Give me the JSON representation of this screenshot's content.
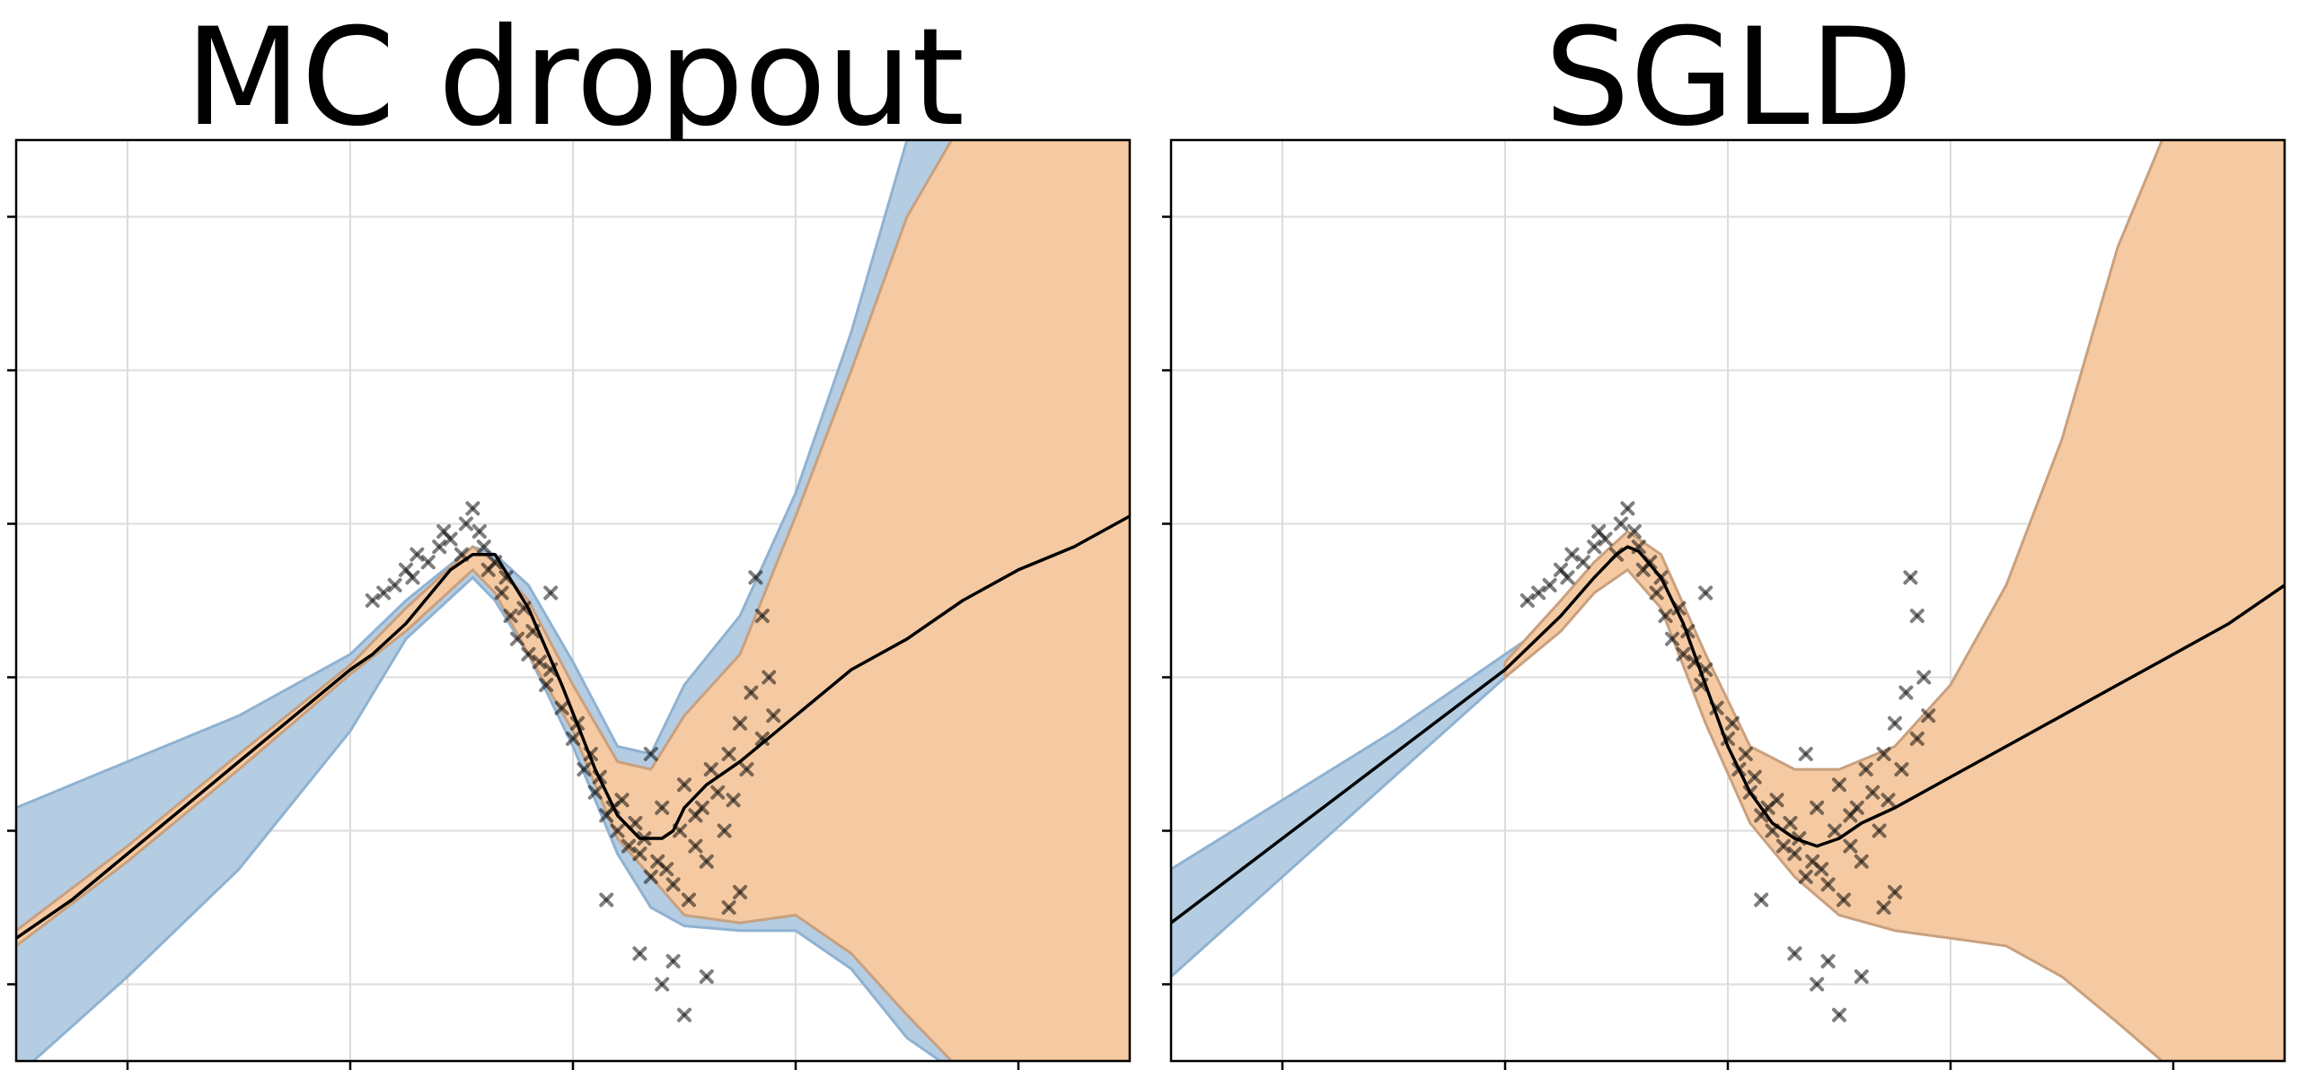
{
  "chart_data": [
    {
      "type": "line",
      "title": "MC dropout",
      "xlabel": "",
      "ylabel": "",
      "xlim": [
        -2.5,
        2.5
      ],
      "ylim": [
        -3.5,
        2.5
      ],
      "xticks": [
        -2,
        -1,
        0,
        1,
        2
      ],
      "yticks": [
        -3,
        -2,
        -1,
        0,
        1,
        2
      ],
      "grid": true,
      "tick_labels_visible": false,
      "series": [
        {
          "kind": "mean_line",
          "color": "#000000",
          "x": [
            -2.5,
            -2.25,
            -2.0,
            -1.75,
            -1.5,
            -1.25,
            -1.0,
            -0.9,
            -0.75,
            -0.55,
            -0.45,
            -0.35,
            -0.2,
            -0.05,
            0.1,
            0.2,
            0.3,
            0.4,
            0.45,
            0.5,
            0.6,
            0.75,
            1.0,
            1.25,
            1.5,
            1.75,
            2.0,
            2.25,
            2.5
          ],
          "y": [
            -2.7,
            -2.45,
            -2.15,
            -1.85,
            -1.55,
            -1.25,
            -0.95,
            -0.85,
            -0.65,
            -0.3,
            -0.2,
            -0.2,
            -0.55,
            -1.05,
            -1.6,
            -1.9,
            -2.05,
            -2.05,
            -2.0,
            -1.85,
            -1.7,
            -1.55,
            -1.25,
            -0.95,
            -0.75,
            -0.5,
            -0.3,
            -0.15,
            0.05
          ]
        },
        {
          "kind": "uncertainty_band_outer",
          "color": "#b4cde2",
          "x": [
            -2.5,
            -2.0,
            -1.5,
            -1.0,
            -0.75,
            -0.45,
            -0.35,
            -0.2,
            0.0,
            0.2,
            0.35,
            0.5,
            0.75,
            1.0,
            1.25,
            1.5,
            1.65,
            1.9,
            2.2,
            2.5
          ],
          "upper": [
            -1.85,
            -1.55,
            -1.25,
            -0.85,
            -0.5,
            -0.15,
            -0.2,
            -0.4,
            -0.9,
            -1.45,
            -1.5,
            -1.05,
            -0.6,
            0.2,
            1.25,
            2.5,
            2.5,
            2.5,
            2.5,
            2.5
          ],
          "lower": [
            -3.6,
            -2.95,
            -2.25,
            -1.35,
            -0.75,
            -0.35,
            -0.5,
            -0.85,
            -1.45,
            -2.15,
            -2.5,
            -2.62,
            -2.65,
            -2.65,
            -2.9,
            -3.35,
            -3.5,
            -3.5,
            -3.5,
            -3.5
          ]
        },
        {
          "kind": "uncertainty_band_inner",
          "color": "#f5caa3",
          "x": [
            -2.5,
            -2.0,
            -1.5,
            -1.0,
            -0.75,
            -0.45,
            -0.35,
            -0.2,
            0.0,
            0.2,
            0.35,
            0.5,
            0.75,
            1.0,
            1.25,
            1.5,
            1.7,
            2.0,
            2.5
          ],
          "upper": [
            -2.65,
            -2.1,
            -1.5,
            -0.92,
            -0.55,
            -0.15,
            -0.25,
            -0.5,
            -1.05,
            -1.55,
            -1.6,
            -1.25,
            -0.85,
            0.05,
            1.0,
            2.0,
            2.5,
            2.5,
            2.5
          ],
          "lower": [
            -2.75,
            -2.2,
            -1.6,
            -0.98,
            -0.7,
            -0.3,
            -0.45,
            -0.85,
            -1.35,
            -2.05,
            -2.3,
            -2.55,
            -2.6,
            -2.55,
            -2.8,
            -3.2,
            -3.5,
            -3.5,
            -3.5
          ]
        },
        {
          "kind": "observations",
          "marker": "x",
          "color": "#000000",
          "x": [
            -0.9,
            -0.85,
            -0.8,
            -0.75,
            -0.72,
            -0.7,
            -0.65,
            -0.6,
            -0.58,
            -0.55,
            -0.5,
            -0.48,
            -0.45,
            -0.42,
            -0.4,
            -0.38,
            -0.35,
            -0.32,
            -0.3,
            -0.28,
            -0.25,
            -0.22,
            -0.2,
            -0.15,
            -0.12,
            -0.1,
            -0.05,
            0.0,
            0.02,
            0.05,
            0.08,
            0.1,
            0.12,
            0.15,
            0.18,
            0.2,
            0.22,
            0.25,
            0.28,
            0.3,
            0.32,
            0.35,
            0.38,
            0.4,
            0.42,
            0.45,
            0.48,
            0.5,
            0.52,
            0.55,
            0.58,
            0.6,
            0.62,
            0.65,
            0.68,
            0.7,
            0.72,
            0.75,
            0.78,
            0.8,
            0.85,
            0.88,
            0.9,
            0.15,
            0.3,
            0.4,
            0.45,
            0.5,
            0.6,
            0.82,
            0.85,
            -0.1,
            -0.18,
            0.35,
            0.55,
            0.7,
            0.75
          ],
          "y": [
            -0.5,
            -0.45,
            -0.4,
            -0.3,
            -0.35,
            -0.2,
            -0.25,
            -0.15,
            -0.05,
            -0.1,
            -0.2,
            0.0,
            0.1,
            -0.05,
            -0.15,
            -0.3,
            -0.25,
            -0.45,
            -0.35,
            -0.6,
            -0.75,
            -0.55,
            -0.85,
            -0.9,
            -1.05,
            -0.95,
            -1.2,
            -1.4,
            -1.3,
            -1.6,
            -1.5,
            -1.75,
            -1.65,
            -1.9,
            -1.85,
            -2.0,
            -1.8,
            -2.1,
            -1.95,
            -2.15,
            -2.05,
            -2.3,
            -2.2,
            -1.85,
            -2.25,
            -2.35,
            -2.0,
            -1.7,
            -2.45,
            -2.1,
            -1.85,
            -2.2,
            -1.6,
            -1.75,
            -2.0,
            -1.5,
            -1.8,
            -1.3,
            -1.6,
            -1.1,
            -1.4,
            -1.0,
            -1.25,
            -2.45,
            -2.8,
            -3.0,
            -2.85,
            -3.2,
            -2.95,
            -0.35,
            -0.6,
            -0.45,
            -0.7,
            -1.5,
            -1.9,
            -2.5,
            -2.4
          ]
        }
      ]
    },
    {
      "type": "line",
      "title": "SGLD",
      "xlabel": "",
      "ylabel": "",
      "xlim": [
        -2.5,
        2.5
      ],
      "ylim": [
        -3.5,
        2.5
      ],
      "xticks": [
        -2,
        -1,
        0,
        1,
        2
      ],
      "yticks": [
        -3,
        -2,
        -1,
        0,
        1,
        2
      ],
      "grid": true,
      "tick_labels_visible": false,
      "series": [
        {
          "kind": "mean_line",
          "color": "#000000",
          "x": [
            -2.5,
            -2.0,
            -1.5,
            -1.0,
            -0.75,
            -0.6,
            -0.5,
            -0.45,
            -0.4,
            -0.3,
            -0.2,
            -0.1,
            0.0,
            0.1,
            0.2,
            0.3,
            0.4,
            0.5,
            0.6,
            0.75,
            1.0,
            1.25,
            1.5,
            1.75,
            2.0,
            2.25,
            2.5
          ],
          "y": [
            -2.6,
            -2.05,
            -1.5,
            -0.95,
            -0.6,
            -0.35,
            -0.2,
            -0.15,
            -0.18,
            -0.35,
            -0.65,
            -1.05,
            -1.45,
            -1.75,
            -1.95,
            -2.05,
            -2.1,
            -2.05,
            -1.95,
            -1.85,
            -1.65,
            -1.45,
            -1.25,
            -1.05,
            -0.85,
            -0.65,
            -0.4
          ]
        },
        {
          "kind": "uncertainty_band_outer",
          "color": "#b4cde2",
          "x": [
            -2.5,
            -2.0,
            -1.5,
            -1.0,
            -0.9
          ],
          "upper": [
            -2.25,
            -1.8,
            -1.35,
            -0.85,
            -0.75
          ],
          "lower": [
            -2.95,
            -2.3,
            -1.65,
            -1.0,
            -0.85
          ]
        },
        {
          "kind": "uncertainty_band_inner",
          "color": "#f5caa3",
          "x": [
            -1.0,
            -0.75,
            -0.6,
            -0.45,
            -0.3,
            -0.1,
            0.1,
            0.3,
            0.5,
            0.75,
            1.0,
            1.25,
            1.5,
            1.75,
            1.95,
            2.0,
            2.25,
            2.5
          ],
          "upper": [
            -0.9,
            -0.5,
            -0.25,
            -0.05,
            -0.2,
            -0.85,
            -1.45,
            -1.6,
            -1.6,
            -1.45,
            -1.05,
            -0.4,
            0.55,
            1.8,
            2.5,
            2.5,
            2.5,
            2.5
          ],
          "lower": [
            -1.0,
            -0.7,
            -0.45,
            -0.3,
            -0.55,
            -1.3,
            -1.95,
            -2.3,
            -2.55,
            -2.65,
            -2.7,
            -2.75,
            -2.95,
            -3.25,
            -3.5,
            -3.5,
            -3.5,
            -3.5
          ]
        },
        {
          "kind": "observations",
          "marker": "x",
          "color": "#000000",
          "x": [
            -0.9,
            -0.85,
            -0.8,
            -0.75,
            -0.72,
            -0.7,
            -0.65,
            -0.6,
            -0.58,
            -0.55,
            -0.5,
            -0.48,
            -0.45,
            -0.42,
            -0.4,
            -0.38,
            -0.35,
            -0.32,
            -0.3,
            -0.28,
            -0.25,
            -0.22,
            -0.2,
            -0.15,
            -0.12,
            -0.1,
            -0.05,
            0.0,
            0.02,
            0.05,
            0.08,
            0.1,
            0.12,
            0.15,
            0.18,
            0.2,
            0.22,
            0.25,
            0.28,
            0.3,
            0.32,
            0.35,
            0.38,
            0.4,
            0.42,
            0.45,
            0.48,
            0.5,
            0.52,
            0.55,
            0.58,
            0.6,
            0.62,
            0.65,
            0.68,
            0.7,
            0.72,
            0.75,
            0.78,
            0.8,
            0.85,
            0.88,
            0.9,
            0.15,
            0.3,
            0.4,
            0.45,
            0.5,
            0.6,
            0.82,
            0.85,
            -0.1,
            -0.18,
            0.35,
            0.55,
            0.7,
            0.75
          ],
          "y": [
            -0.5,
            -0.45,
            -0.4,
            -0.3,
            -0.35,
            -0.2,
            -0.25,
            -0.15,
            -0.05,
            -0.1,
            -0.2,
            0.0,
            0.1,
            -0.05,
            -0.15,
            -0.3,
            -0.25,
            -0.45,
            -0.35,
            -0.6,
            -0.75,
            -0.55,
            -0.85,
            -0.9,
            -1.05,
            -0.95,
            -1.2,
            -1.4,
            -1.3,
            -1.6,
            -1.5,
            -1.75,
            -1.65,
            -1.9,
            -1.85,
            -2.0,
            -1.8,
            -2.1,
            -1.95,
            -2.15,
            -2.05,
            -2.3,
            -2.2,
            -1.85,
            -2.25,
            -2.35,
            -2.0,
            -1.7,
            -2.45,
            -2.1,
            -1.85,
            -2.2,
            -1.6,
            -1.75,
            -2.0,
            -1.5,
            -1.8,
            -1.3,
            -1.6,
            -1.1,
            -1.4,
            -1.0,
            -1.25,
            -2.45,
            -2.8,
            -3.0,
            -2.85,
            -3.2,
            -2.95,
            -0.35,
            -0.6,
            -0.45,
            -0.7,
            -1.5,
            -1.9,
            -2.5,
            -2.4
          ]
        }
      ]
    }
  ]
}
